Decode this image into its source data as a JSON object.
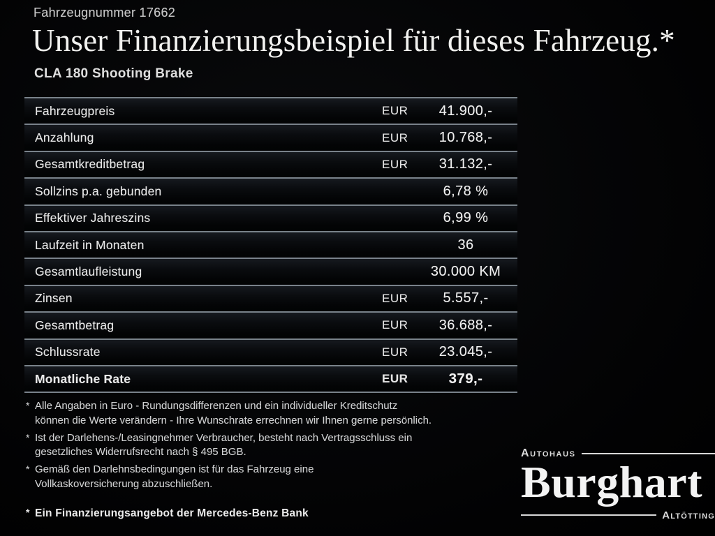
{
  "header": {
    "vehicle_number": "Fahrzeugnummer 17662",
    "title": "Unser Finanzierungsbeispiel für dieses Fahrzeug.*",
    "model": "CLA 180 Shooting Brake"
  },
  "table": {
    "rows": [
      {
        "label": "Fahrzeugpreis",
        "currency": "EUR",
        "value": "41.900,-"
      },
      {
        "label": "Anzahlung",
        "currency": "EUR",
        "value": "10.768,-"
      },
      {
        "label": "Gesamtkreditbetrag",
        "currency": "EUR",
        "value": "31.132,-"
      },
      {
        "label": "Sollzins p.a. gebunden",
        "currency": "",
        "value": "6,78 %"
      },
      {
        "label": "Effektiver Jahreszins",
        "currency": "",
        "value": "6,99 %"
      },
      {
        "label": "Laufzeit in Monaten",
        "currency": "",
        "value": "36"
      },
      {
        "label": "Gesamtlaufleistung",
        "currency": "",
        "value": "30.000 KM"
      },
      {
        "label": "Zinsen",
        "currency": "EUR",
        "value": "5.557,-"
      },
      {
        "label": "Gesamtbetrag",
        "currency": "EUR",
        "value": "36.688,-"
      },
      {
        "label": "Schlussrate",
        "currency": "EUR",
        "value": "23.045,-"
      },
      {
        "label": "Monatliche Rate",
        "currency": "EUR",
        "value": "379,-"
      }
    ]
  },
  "footnotes": [
    {
      "marker": "*",
      "text": "Alle Angaben in Euro - Rundungsdifferenzen und ein individueller Kreditschutz\nkönnen die Werte verändern - Ihre Wunschrate errechnen wir Ihnen gerne persönlich."
    },
    {
      "marker": "*",
      "text": "Ist der Darlehens-/Leasingnehmer Verbraucher, besteht nach Vertragsschluss ein\ngesetzliches Widerrufsrecht nach § 495 BGB."
    },
    {
      "marker": "*",
      "text": "Gemäß den Darlehnsbedingungen ist für das Fahrzeug eine\nVollkaskoversicherung abzuschließen."
    }
  ],
  "final_note": {
    "marker": "*",
    "text": "Ein Finanzierungsangebot der Mercedes-Benz Bank"
  },
  "logo": {
    "top": "Autohaus",
    "name": "Burghart",
    "bottom": "Altötting"
  },
  "colors": {
    "background": "#020203",
    "divider": "#79828a",
    "text": "#e8e8e8",
    "footnote_text": "#cfd0d1"
  }
}
